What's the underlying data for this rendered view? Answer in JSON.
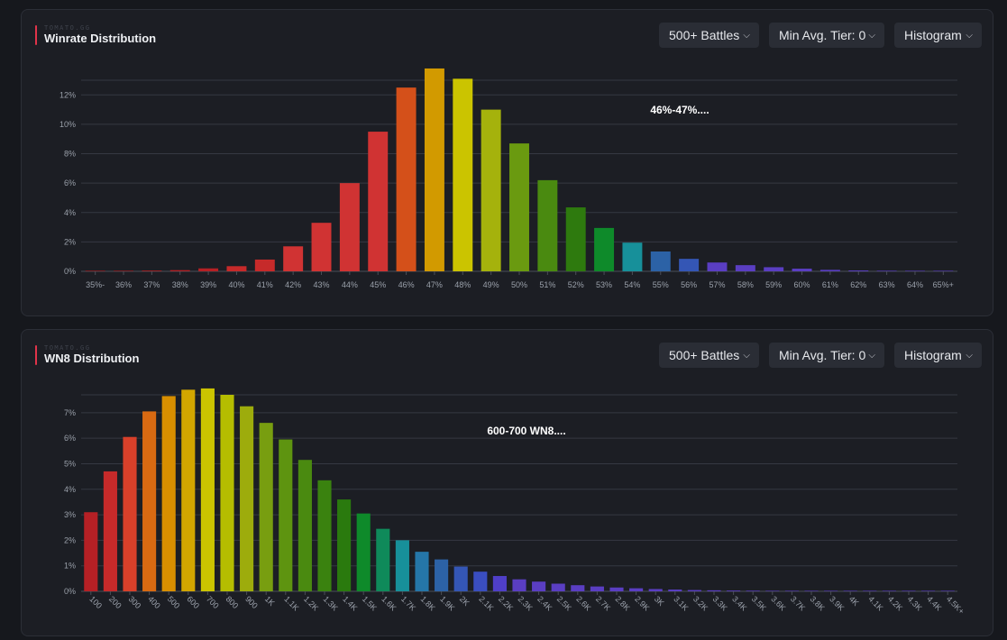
{
  "panels": [
    {
      "watermark": "TOMATO.GG",
      "title": "Winrate Distribution",
      "controls": {
        "battles": "500+ Battles",
        "tier": "Min Avg. Tier: 0",
        "mode": "Histogram"
      },
      "icons": {
        "dropdown": "chevron-down-icon"
      }
    },
    {
      "watermark": "TOMATO.GG",
      "title": "WN8 Distribution",
      "controls": {
        "battles": "500+ Battles",
        "tier": "Min Avg. Tier: 0",
        "mode": "Histogram"
      },
      "icons": {
        "dropdown": "chevron-down-icon"
      }
    }
  ],
  "chart_data": [
    {
      "type": "bar",
      "title": "Winrate Distribution",
      "categories": [
        "35%-",
        "36%",
        "37%",
        "38%",
        "39%",
        "40%",
        "41%",
        "42%",
        "43%",
        "44%",
        "45%",
        "46%",
        "47%",
        "48%",
        "49%",
        "50%",
        "51%",
        "52%",
        "53%",
        "54%",
        "55%",
        "56%",
        "57%",
        "58%",
        "59%",
        "60%",
        "61%",
        "62%",
        "63%",
        "64%",
        "65%+"
      ],
      "values": [
        0.01,
        0.02,
        0.05,
        0.08,
        0.2,
        0.35,
        0.8,
        1.7,
        3.3,
        6.0,
        9.5,
        12.5,
        13.8,
        13.1,
        11.0,
        8.7,
        6.2,
        4.35,
        2.95,
        1.95,
        1.35,
        0.85,
        0.6,
        0.42,
        0.28,
        0.18,
        0.1,
        0.06,
        0.04,
        0.03,
        0.02
      ],
      "colors": [
        "#b52025",
        "#b52025",
        "#b52025",
        "#b52025",
        "#b52025",
        "#c62a2a",
        "#c62a2a",
        "#d03333",
        "#d03333",
        "#d03333",
        "#d03333",
        "#d4501a",
        "#d29a00",
        "#cbc400",
        "#a5b20c",
        "#6a9a10",
        "#4a8a10",
        "#2e7a0e",
        "#0e8a2a",
        "#17909a",
        "#2c62a6",
        "#3456b5",
        "#5a3ec2",
        "#5a3ec2",
        "#5a3ec2",
        "#5a3ec2",
        "#5a3ec2",
        "#5a3ec2",
        "#5a3ec2",
        "#5a3ec2",
        "#5a3ec2"
      ],
      "y_ticks": [
        0,
        2,
        4,
        6,
        8,
        10,
        12
      ],
      "y_tick_suffix": "%",
      "ylim": [
        0,
        13.0
      ],
      "grid": true,
      "hover_label": "46%-47%...."
    },
    {
      "type": "bar",
      "title": "WN8 Distribution",
      "categories": [
        "100",
        "200",
        "300",
        "400",
        "500",
        "600",
        "700",
        "800",
        "900",
        "1K",
        "1.1K",
        "1.2K",
        "1.3K",
        "1.4K",
        "1.5K",
        "1.6K",
        "1.7K",
        "1.8K",
        "1.9K",
        "2K",
        "2.1K",
        "2.2K",
        "2.3K",
        "2.4K",
        "2.5K",
        "2.6K",
        "2.7K",
        "2.8K",
        "2.9K",
        "3K",
        "3.1K",
        "3.2K",
        "3.3K",
        "3.4K",
        "3.5K",
        "3.6K",
        "3.7K",
        "3.8K",
        "3.9K",
        "4K",
        "4.1K",
        "4.2K",
        "4.3K",
        "4.4K",
        "4.5K+"
      ],
      "values": [
        3.1,
        4.7,
        6.05,
        7.05,
        7.65,
        7.9,
        7.95,
        7.7,
        7.25,
        6.6,
        5.95,
        5.15,
        4.35,
        3.6,
        3.05,
        2.45,
        2.0,
        1.55,
        1.25,
        0.97,
        0.77,
        0.6,
        0.47,
        0.38,
        0.3,
        0.24,
        0.19,
        0.15,
        0.12,
        0.09,
        0.07,
        0.05,
        0.04,
        0.03,
        0.025,
        0.02,
        0.015,
        0.012,
        0.01,
        0.01,
        0.01,
        0.008,
        0.006,
        0.005,
        0.005
      ],
      "colors": [
        "#b52025",
        "#c62a2a",
        "#d8402a",
        "#d86a12",
        "#d88f00",
        "#d2a600",
        "#cbc400",
        "#b5bd00",
        "#9dac0c",
        "#789e10",
        "#5e9410",
        "#4a8a10",
        "#3a820f",
        "#2a7a0e",
        "#0e8a2a",
        "#0f8a5a",
        "#17909a",
        "#2576a8",
        "#2c62a6",
        "#3456b5",
        "#3a4ec0",
        "#4f3fc8",
        "#5a3ec2",
        "#5a3ec2",
        "#5a3ec2",
        "#5a3ec2",
        "#5a3ec2",
        "#5a3ec2",
        "#5a3ec2",
        "#5a3ec2",
        "#5a3ec2",
        "#5a3ec2",
        "#5a3ec2",
        "#5a3ec2",
        "#5a3ec2",
        "#5a3ec2",
        "#5a3ec2",
        "#5a3ec2",
        "#5a3ec2",
        "#5a3ec2",
        "#5a3ec2",
        "#5a3ec2",
        "#5a3ec2",
        "#5a3ec2",
        "#5a3ec2"
      ],
      "y_ticks": [
        0,
        1,
        2,
        3,
        4,
        5,
        6,
        7
      ],
      "y_tick_suffix": "%",
      "ylim": [
        0,
        7.7
      ],
      "grid": true,
      "hover_label": "600-700 WN8...."
    }
  ]
}
